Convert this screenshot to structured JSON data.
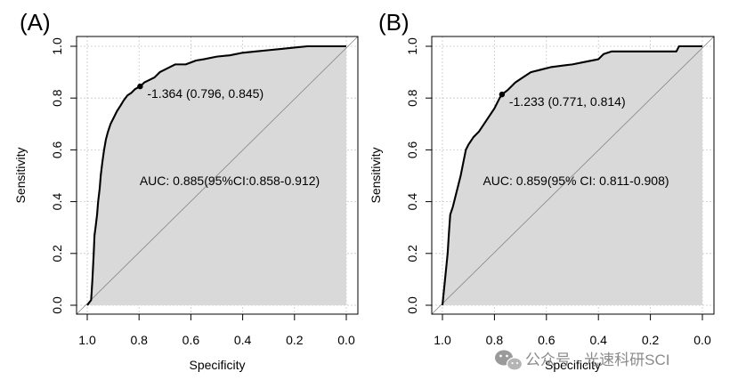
{
  "chart_data": [
    {
      "type": "line",
      "panel_label": "(A)",
      "xlabel": "Specificity",
      "ylabel": "Sensitivity",
      "xlim": [
        1.0,
        0.0
      ],
      "ylim": [
        0.0,
        1.0
      ],
      "x_ticks": [
        "1.0",
        "0.8",
        "0.6",
        "0.4",
        "0.2",
        "0.0"
      ],
      "y_ticks": [
        "0.0",
        "0.2",
        "0.4",
        "0.6",
        "0.8",
        "1.0"
      ],
      "grid": true,
      "fill_color": "#d9d9d9",
      "line_color": "#000000",
      "threshold": {
        "specificity": 0.796,
        "sensitivity": 0.845,
        "label": "-1.364 (0.796, 0.845)"
      },
      "auc_label": "AUC: 0.885(95%CI:0.858-0.912)",
      "roc": {
        "specificity": [
          1.0,
          0.985,
          0.98,
          0.975,
          0.972,
          0.968,
          0.962,
          0.958,
          0.952,
          0.948,
          0.942,
          0.935,
          0.928,
          0.92,
          0.91,
          0.9,
          0.885,
          0.872,
          0.86,
          0.845,
          0.83,
          0.815,
          0.796,
          0.78,
          0.76,
          0.74,
          0.72,
          0.69,
          0.66,
          0.62,
          0.58,
          0.55,
          0.5,
          0.45,
          0.4,
          0.35,
          0.3,
          0.25,
          0.2,
          0.15,
          0.1,
          0.05,
          0.0
        ],
        "sensitivity": [
          0.0,
          0.02,
          0.1,
          0.2,
          0.27,
          0.3,
          0.35,
          0.4,
          0.45,
          0.5,
          0.55,
          0.6,
          0.64,
          0.67,
          0.7,
          0.72,
          0.75,
          0.77,
          0.79,
          0.81,
          0.82,
          0.835,
          0.845,
          0.86,
          0.87,
          0.88,
          0.9,
          0.915,
          0.93,
          0.93,
          0.945,
          0.95,
          0.96,
          0.965,
          0.975,
          0.98,
          0.985,
          0.99,
          0.995,
          1.0,
          1.0,
          1.0,
          1.0
        ]
      }
    },
    {
      "type": "line",
      "panel_label": "(B)",
      "xlabel": "Specificity",
      "ylabel": "Sensitivity",
      "xlim": [
        1.0,
        0.0
      ],
      "ylim": [
        0.0,
        1.0
      ],
      "x_ticks": [
        "1.0",
        "0.8",
        "0.6",
        "0.4",
        "0.2",
        "0.0"
      ],
      "y_ticks": [
        "0.0",
        "0.2",
        "0.4",
        "0.6",
        "0.8",
        "1.0"
      ],
      "grid": true,
      "fill_color": "#d9d9d9",
      "line_color": "#000000",
      "threshold": {
        "specificity": 0.771,
        "sensitivity": 0.814,
        "label": "-1.233 (0.771, 0.814)"
      },
      "auc_label": "AUC: 0.859(95% CI: 0.811-0.908)",
      "roc": {
        "specificity": [
          1.0,
          0.99,
          0.985,
          0.98,
          0.975,
          0.97,
          0.96,
          0.95,
          0.93,
          0.92,
          0.91,
          0.9,
          0.88,
          0.86,
          0.84,
          0.82,
          0.8,
          0.78,
          0.771,
          0.75,
          0.72,
          0.69,
          0.66,
          0.62,
          0.58,
          0.5,
          0.45,
          0.4,
          0.38,
          0.35,
          0.3,
          0.2,
          0.1,
          0.09,
          0.05,
          0.0
        ],
        "sensitivity": [
          0.0,
          0.1,
          0.15,
          0.2,
          0.28,
          0.35,
          0.38,
          0.42,
          0.5,
          0.55,
          0.6,
          0.62,
          0.65,
          0.67,
          0.7,
          0.73,
          0.76,
          0.8,
          0.814,
          0.83,
          0.86,
          0.88,
          0.9,
          0.91,
          0.92,
          0.93,
          0.94,
          0.95,
          0.97,
          0.98,
          0.98,
          0.98,
          0.98,
          1.0,
          1.0,
          1.0
        ]
      }
    }
  ],
  "watermark": {
    "text": "公众号 · 光速科研SCI",
    "icon": "wechat-icon"
  }
}
